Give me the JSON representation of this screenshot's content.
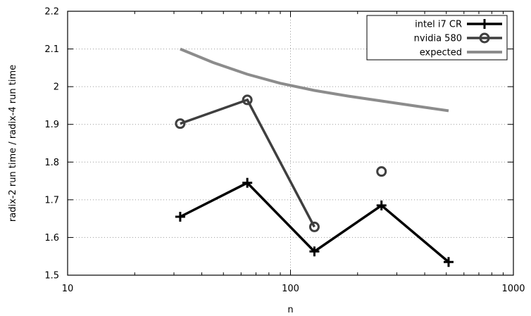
{
  "chart_data": {
    "type": "line",
    "x_scale": "log",
    "xlabel": "n",
    "ylabel": "radix-2 run time / radix-4 run time",
    "xlim": [
      10,
      1000
    ],
    "ylim": [
      1.5,
      2.2
    ],
    "x_ticks": [
      10,
      100,
      1000
    ],
    "x_tick_labels": [
      "10",
      "100",
      "1000"
    ],
    "y_ticks": [
      1.5,
      1.6,
      1.7,
      1.8,
      1.9,
      2.0,
      2.1,
      2.2
    ],
    "y_tick_labels": [
      "1.5",
      "1.6",
      "1.7",
      "1.8",
      "1.9",
      "2",
      "2.1",
      "2.2"
    ],
    "grid": true,
    "legend_position": "top-right",
    "series": [
      {
        "name": "intel i7 CR",
        "color": "#000000",
        "marker": "plus",
        "points": [
          {
            "x": 32,
            "y": 1.655
          },
          {
            "x": 64,
            "y": 1.745
          },
          {
            "x": 128,
            "y": 1.563
          },
          {
            "x": 256,
            "y": 1.685
          },
          {
            "x": 512,
            "y": 1.535
          }
        ]
      },
      {
        "name": "nvidia 580",
        "color": "#3f3f3f",
        "marker": "circle",
        "segments": [
          [
            {
              "x": 32,
              "y": 1.902
            },
            {
              "x": 64,
              "y": 1.965
            },
            {
              "x": 128,
              "y": 1.628
            }
          ],
          [
            {
              "x": 256,
              "y": 1.775
            }
          ]
        ]
      },
      {
        "name": "expected",
        "color": "#8c8c8c",
        "marker": "none",
        "points": [
          {
            "x": 32,
            "y": 2.1
          },
          {
            "x": 45,
            "y": 2.064
          },
          {
            "x": 64,
            "y": 2.033
          },
          {
            "x": 90,
            "y": 2.009
          },
          {
            "x": 128,
            "y": 1.99
          },
          {
            "x": 181,
            "y": 1.975
          },
          {
            "x": 256,
            "y": 1.962
          },
          {
            "x": 362,
            "y": 1.949
          },
          {
            "x": 512,
            "y": 1.936
          }
        ]
      }
    ]
  }
}
